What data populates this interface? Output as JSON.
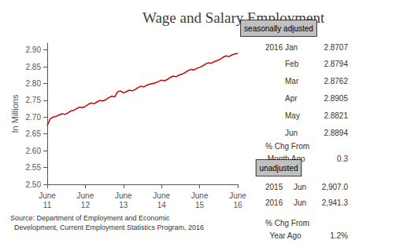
{
  "chart_data": {
    "type": "line",
    "title": "Wage and Salary Employment",
    "ylabel": "In Millions",
    "color": "#cc0000",
    "grid": false,
    "ylim": [
      2.5,
      2.92
    ],
    "yticks": [
      {
        "value": 2.5,
        "label": "2.50"
      },
      2.55,
      {
        "value": 2.6,
        "label": "2.60"
      },
      2.65,
      {
        "value": 2.7,
        "label": "2.70"
      },
      2.75,
      {
        "value": 2.8,
        "label": "2.80"
      },
      2.85,
      {
        "value": 2.9,
        "label": "2.90"
      }
    ],
    "categories": [
      "June\n11",
      null,
      null,
      null,
      null,
      null,
      null,
      null,
      null,
      null,
      null,
      null,
      null,
      "June\n12",
      null,
      null,
      null,
      null,
      null,
      null,
      null,
      null,
      null,
      null,
      null,
      null,
      "June\n13",
      null,
      null,
      null,
      null,
      null,
      null,
      null,
      null,
      null,
      null,
      null,
      null,
      "June\n14",
      null,
      null,
      null,
      null,
      null,
      null,
      null,
      null,
      null,
      null,
      null,
      null,
      "June\n15",
      null,
      null,
      null,
      null,
      null,
      null,
      null,
      null,
      null,
      null,
      null,
      null,
      "June\n16"
    ],
    "values": [
      2.675,
      2.695,
      2.7,
      2.702,
      2.706,
      2.71,
      2.708,
      2.712,
      2.718,
      2.72,
      2.725,
      2.73,
      2.728,
      2.732,
      2.738,
      2.742,
      2.74,
      2.745,
      2.75,
      2.748,
      2.752,
      2.758,
      2.762,
      2.76,
      2.775,
      2.778,
      2.772,
      2.776,
      2.78,
      2.778,
      2.782,
      2.788,
      2.792,
      2.79,
      2.795,
      2.798,
      2.8,
      2.802,
      2.806,
      2.81,
      2.808,
      2.812,
      2.818,
      2.822,
      2.82,
      2.825,
      2.828,
      2.832,
      2.838,
      2.842,
      2.84,
      2.845,
      2.848,
      2.852,
      2.858,
      2.862,
      2.86,
      2.865,
      2.868,
      2.872,
      2.878,
      2.882,
      2.88,
      2.885,
      2.888,
      2.8894
    ],
    "annotations": {
      "source": "Source: Department of Employment and Economic\n  Development, Current Employment Statistics Program, 2016",
      "panel": [
        {
          "label": "seasonally adjusted",
          "year": "2016",
          "rows": [
            [
              "Jan",
              "2.8707"
            ],
            [
              "Feb",
              "2.8794"
            ],
            [
              "Mar",
              "2.8762"
            ],
            [
              "Apr",
              "2.8905"
            ],
            [
              "May",
              "2.8821"
            ],
            [
              "Jun",
              "2.8894"
            ]
          ],
          "change": {
            "label": "% Chg From\n Month Ago",
            "value": "0.3"
          }
        },
        {
          "label": "unadjusted",
          "rows": [
            [
              "2015",
              "Jun",
              "2,907.0"
            ],
            [
              "2016",
              "Jun",
              "2,941.3"
            ]
          ],
          "change": {
            "label": "% Chg From\n  Year Ago",
            "value": "1.2%"
          }
        }
      ]
    }
  }
}
